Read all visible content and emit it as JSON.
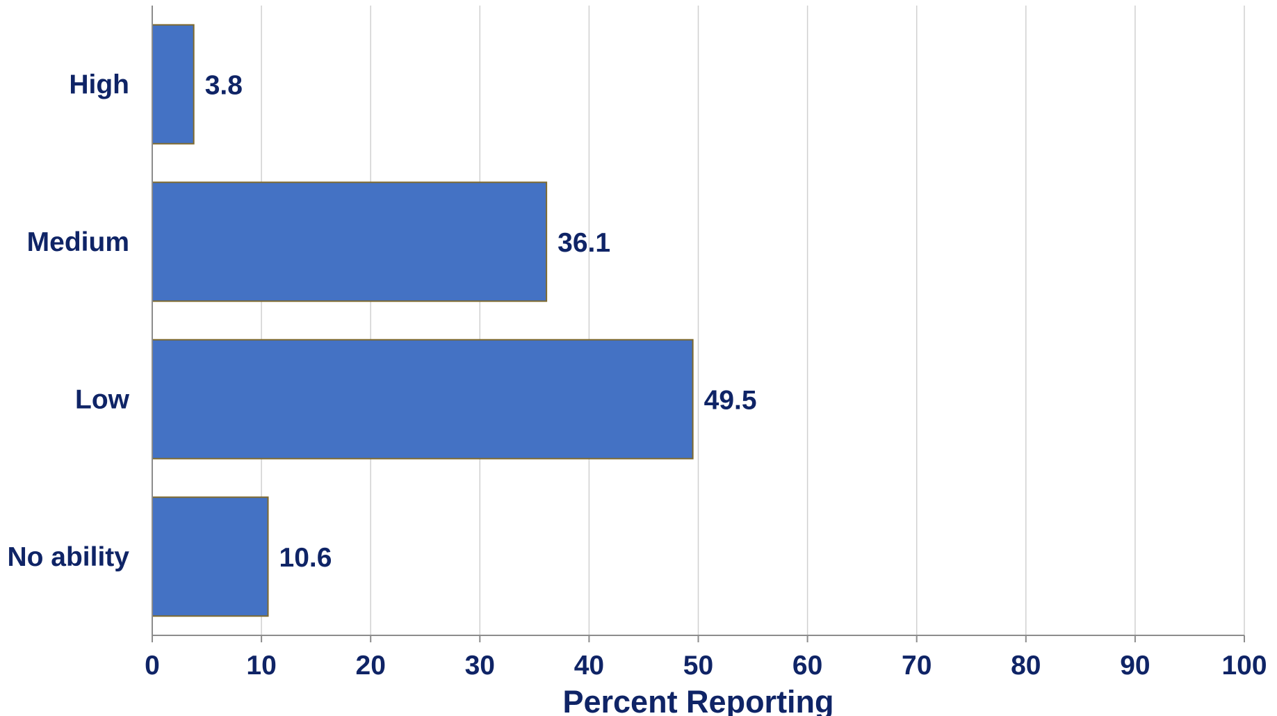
{
  "chart_data": {
    "type": "bar",
    "orientation": "horizontal",
    "title": "",
    "xlabel": "Percent Reporting",
    "ylabel": "",
    "categories": [
      "High",
      "Medium",
      "Low",
      "No ability"
    ],
    "values": [
      3.8,
      36.1,
      49.5,
      10.6
    ],
    "data_labels": [
      "3.8",
      "36.1",
      "49.5",
      "10.6"
    ],
    "xlim": [
      0,
      100
    ],
    "x_ticks": [
      0,
      10,
      20,
      30,
      40,
      50,
      60,
      70,
      80,
      90,
      100
    ],
    "x_tick_labels": [
      "0",
      "10",
      "20",
      "30",
      "40",
      "50",
      "60",
      "70",
      "80",
      "90",
      "100"
    ],
    "grid": "vertical",
    "legend": "none",
    "colors": {
      "bar_fill": "#4472C4",
      "bar_stroke": "#7F6A2E",
      "text": "#0F2466",
      "grid": "#D0D0D0",
      "axis": "#8C8C8C"
    }
  }
}
